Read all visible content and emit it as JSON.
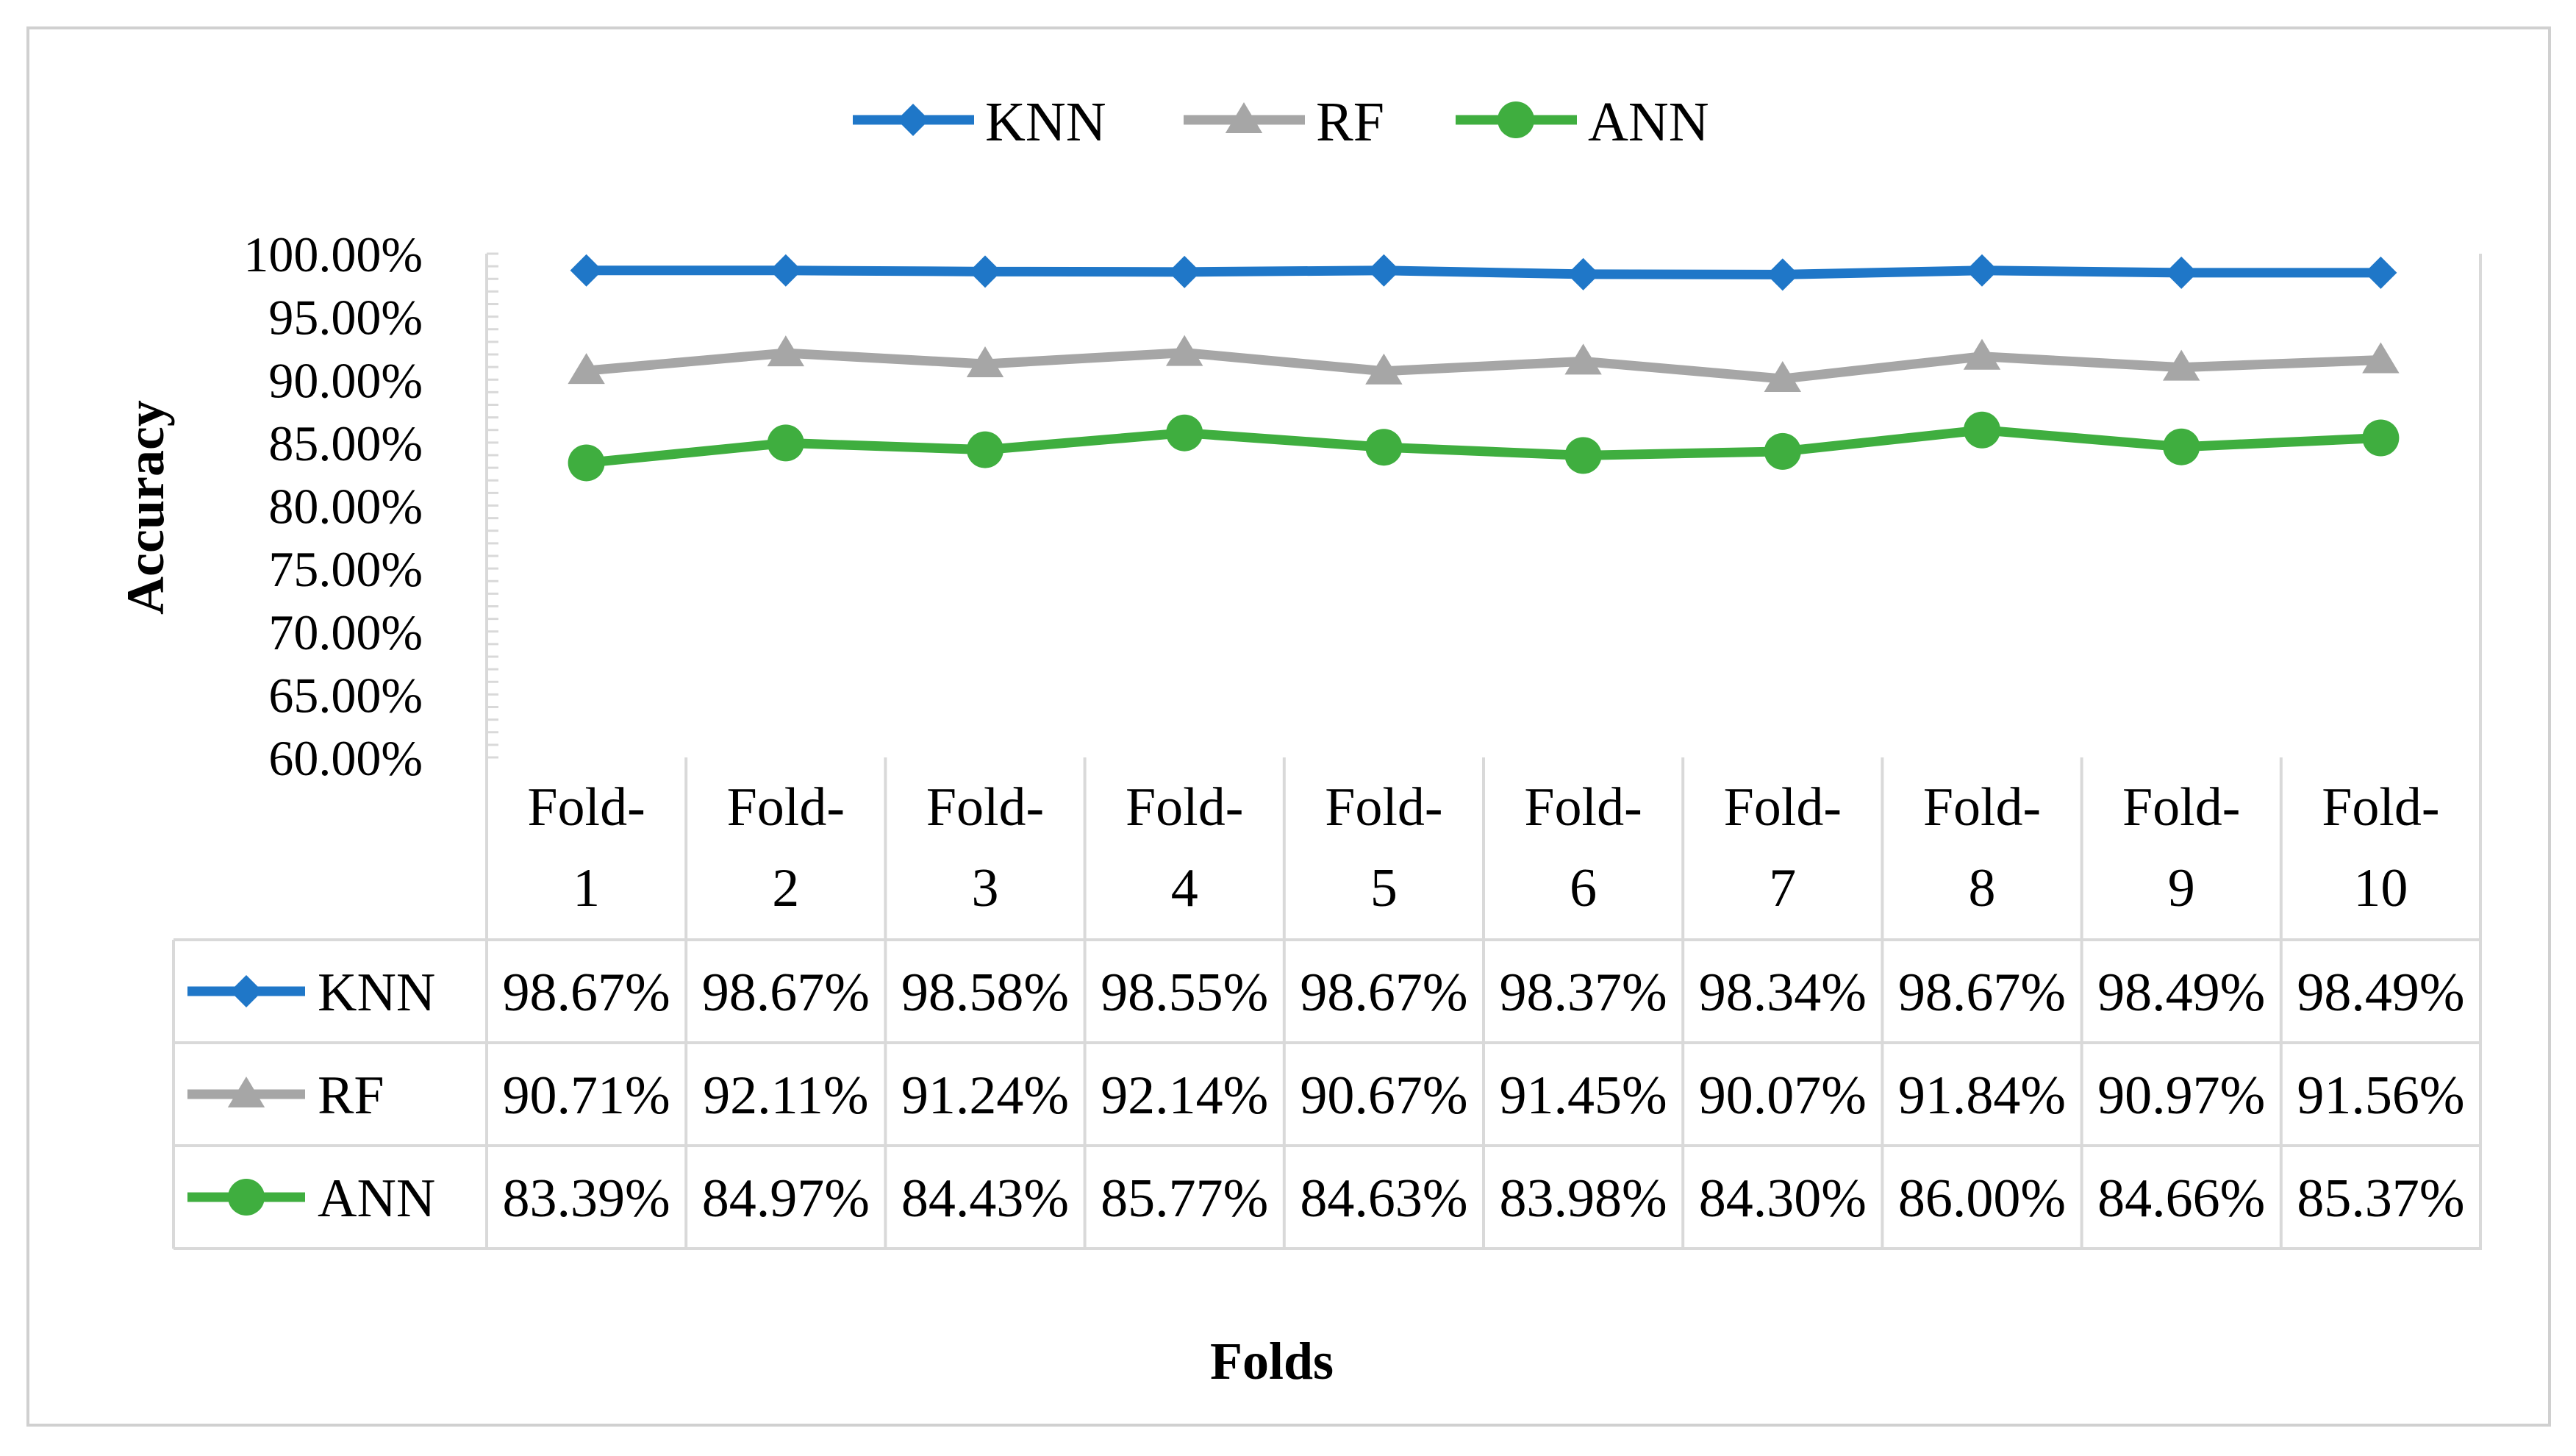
{
  "chart_data": {
    "type": "line",
    "xlabel": "Folds",
    "ylabel": "Accuracy",
    "ylim": [
      0.6,
      1.0
    ],
    "y_ticks": [
      "60.00%",
      "65.00%",
      "70.00%",
      "75.00%",
      "80.00%",
      "85.00%",
      "90.00%",
      "95.00%",
      "100.00%"
    ],
    "y_tick_values": [
      0.6,
      0.65,
      0.7,
      0.75,
      0.8,
      0.85,
      0.9,
      0.95,
      1.0
    ],
    "categories": [
      [
        "Fold-",
        "1"
      ],
      [
        "Fold-",
        "2"
      ],
      [
        "Fold-",
        "3"
      ],
      [
        "Fold-",
        "4"
      ],
      [
        "Fold-",
        "5"
      ],
      [
        "Fold-",
        "6"
      ],
      [
        "Fold-",
        "7"
      ],
      [
        "Fold-",
        "8"
      ],
      [
        "Fold-",
        "9"
      ],
      [
        "Fold-",
        "10"
      ]
    ],
    "legend_position": "top",
    "data_table": true,
    "series": [
      {
        "name": "KNN",
        "color": "#1f77c8",
        "marker": "diamond",
        "values": [
          0.9867,
          0.9867,
          0.9858,
          0.9855,
          0.9867,
          0.9837,
          0.9834,
          0.9867,
          0.9849,
          0.9849
        ],
        "labels": [
          "98.67%",
          "98.67%",
          "98.58%",
          "98.55%",
          "98.67%",
          "98.37%",
          "98.34%",
          "98.67%",
          "98.49%",
          "98.49%"
        ]
      },
      {
        "name": "RF",
        "color": "#a6a6a6",
        "marker": "triangle",
        "values": [
          0.9071,
          0.9211,
          0.9124,
          0.9214,
          0.9067,
          0.9145,
          0.9007,
          0.9184,
          0.9097,
          0.9156
        ],
        "labels": [
          "90.71%",
          "92.11%",
          "91.24%",
          "92.14%",
          "90.67%",
          "91.45%",
          "90.07%",
          "91.84%",
          "90.97%",
          "91.56%"
        ]
      },
      {
        "name": "ANN",
        "color": "#3fae3f",
        "marker": "circle",
        "values": [
          0.8339,
          0.8497,
          0.8443,
          0.8577,
          0.8463,
          0.8398,
          0.843,
          0.86,
          0.8466,
          0.8537
        ],
        "labels": [
          "83.39%",
          "84.97%",
          "84.43%",
          "85.77%",
          "84.63%",
          "83.98%",
          "84.30%",
          "86.00%",
          "84.66%",
          "85.37%"
        ]
      }
    ]
  }
}
